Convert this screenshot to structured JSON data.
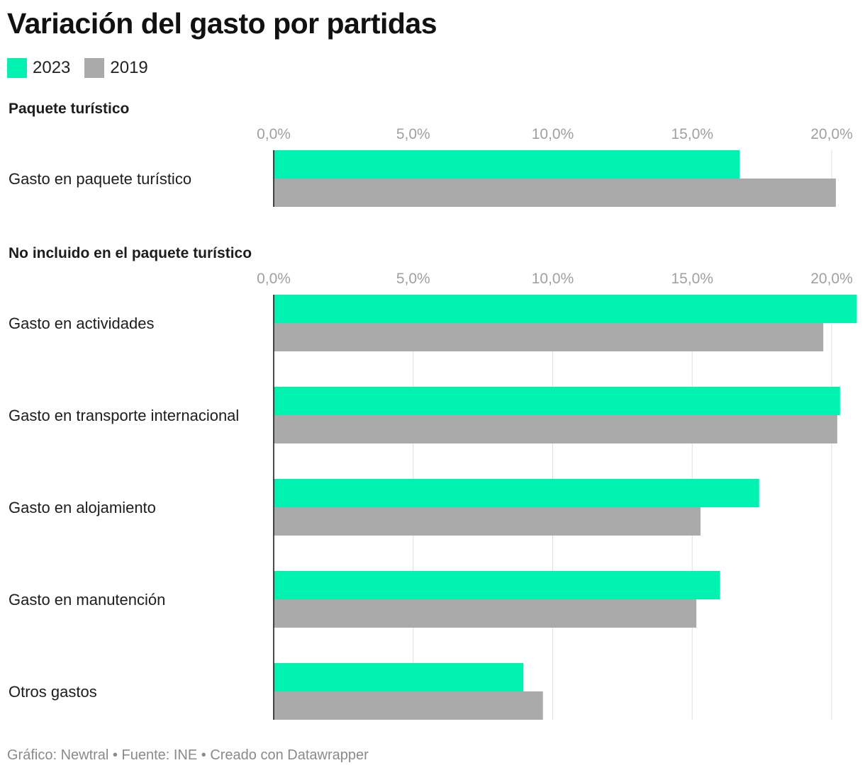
{
  "title": "Variación del gasto por partidas",
  "footer": "Gráfico: Newtral • Fuente: INE • Creado con Datawrapper",
  "colors": {
    "2023": "#00f2b1",
    "2019": "#aaaaaa",
    "axis": "#111111",
    "grid": "#dddddd",
    "tick": "#a0a0a0"
  },
  "chart_data": {
    "type": "bar",
    "orientation": "horizontal",
    "xlim": [
      0,
      21
    ],
    "ticks": [
      "0,0%",
      "5,0%",
      "10,0%",
      "15,0%",
      "20,0%"
    ],
    "tick_values": [
      0,
      5,
      10,
      15,
      20
    ],
    "legend": [
      "2023",
      "2019"
    ],
    "legend_position": "top-left",
    "grid": true,
    "groups": [
      {
        "label": "Paquete turístico",
        "categories": [
          "Gasto en paquete turístico"
        ],
        "series": [
          {
            "name": "2023",
            "values": [
              16.7
            ]
          },
          {
            "name": "2019",
            "values": [
              20.15
            ]
          }
        ]
      },
      {
        "label": "No incluido en el paquete turístico",
        "categories": [
          "Gasto en actividades",
          "Gasto en transporte internacional",
          "Gasto en alojamiento",
          "Gasto en manutención",
          "Otros gastos"
        ],
        "series": [
          {
            "name": "2023",
            "values": [
              20.9,
              20.3,
              17.4,
              16.0,
              8.95
            ]
          },
          {
            "name": "2019",
            "values": [
              19.7,
              20.2,
              15.3,
              15.15,
              9.65
            ]
          }
        ]
      }
    ]
  }
}
